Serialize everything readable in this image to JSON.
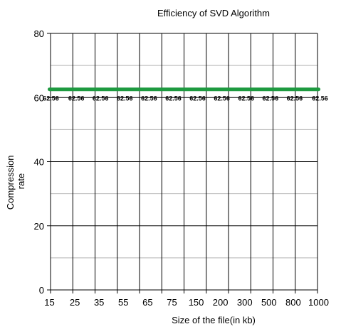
{
  "chart_data": {
    "type": "line",
    "title": "Efficiency of SVD Algorithm",
    "xlabel": "Size of the file(in kb)",
    "ylabel": [
      "Compression",
      "rate"
    ],
    "categories": [
      "15",
      "25",
      "35",
      "55",
      "65",
      "75",
      "150",
      "200",
      "300",
      "500",
      "800",
      "1000"
    ],
    "series": [
      {
        "values": [
          62.56,
          62.56,
          62.56,
          62.56,
          62.56,
          62.56,
          62.56,
          62.56,
          62.56,
          62.56,
          62.56,
          62.56
        ],
        "labels": [
          "62.56",
          "62.56",
          "62.56",
          "62.56",
          "62.56",
          "62.56",
          "62.56",
          "62.56",
          "62.56",
          "62.56",
          "62.56",
          "62.56"
        ],
        "color": "#1e9a40"
      }
    ],
    "ylim": [
      0,
      80
    ],
    "yticks": [
      0,
      20,
      40,
      60,
      80
    ],
    "ytick_labels": [
      "0",
      "20",
      "40",
      "60",
      "80"
    ],
    "minor_gridlines": [
      10,
      30,
      50,
      70
    ],
    "grid": true,
    "legend": "none"
  }
}
